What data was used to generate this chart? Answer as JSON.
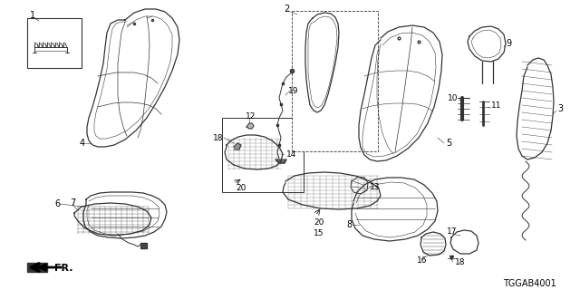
{
  "bg_color": "#ffffff",
  "line_color": "#333333",
  "part_code": "TGGAB4001",
  "figsize": [
    6.4,
    3.2
  ],
  "dpi": 100
}
